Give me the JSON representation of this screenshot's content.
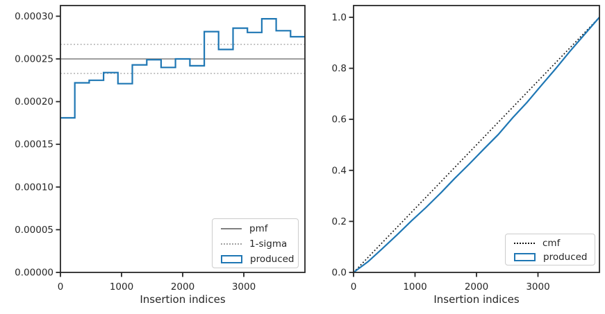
{
  "figure": {
    "background": "#ffffff",
    "text_color": "#262626",
    "spine_color": "#262626",
    "accent_blue": "#1f77b4",
    "pmf_gray": "#7f7f7f",
    "sigma_gray": "#a0a0a0",
    "cmf_black": "#111111"
  },
  "chart_data": [
    {
      "type": "bar",
      "subtype": "step-histogram",
      "title": "",
      "xlabel": "Insertion indices",
      "ylabel": "",
      "xlim": [
        0,
        4000
      ],
      "ylim": [
        0,
        0.0003125
      ],
      "grid": false,
      "xticks": {
        "values": [
          0,
          1000,
          2000,
          3000
        ],
        "labels": [
          "0",
          "1000",
          "2000",
          "3000"
        ]
      },
      "yticks": {
        "values": [
          0,
          5e-05,
          0.0001,
          0.00015,
          0.0002,
          0.00025,
          0.0003
        ],
        "labels": [
          "0.00000",
          "0.00005",
          "0.00010",
          "0.00015",
          "0.00020",
          "0.00025",
          "0.00030"
        ]
      },
      "series": [
        {
          "name": "pmf",
          "type": "hline",
          "y": 0.00025,
          "color": "#7f7f7f",
          "dash": "solid",
          "width": 1.5
        },
        {
          "name": "1-sigma upper",
          "type": "hline",
          "y": 0.000267,
          "color": "#a0a0a0",
          "dash": "dotted",
          "width": 1.4
        },
        {
          "name": "1-sigma lower",
          "type": "hline",
          "y": 0.000233,
          "color": "#a0a0a0",
          "dash": "dotted",
          "width": 1.4
        },
        {
          "name": "produced",
          "type": "step",
          "color": "#1f77b4",
          "dash": "solid",
          "width": 2.2,
          "edges": [
            0,
            235,
            471,
            706,
            941,
            1176,
            1412,
            1647,
            1882,
            2118,
            2353,
            2588,
            2824,
            3059,
            3294,
            3529,
            3765,
            4000
          ],
          "values": [
            0.000181,
            0.000222,
            0.000225,
            0.000234,
            0.000221,
            0.000243,
            0.000249,
            0.00024,
            0.00025,
            0.000242,
            0.000282,
            0.000261,
            0.000286,
            0.000281,
            0.000297,
            0.000283,
            0.000276
          ]
        }
      ],
      "legend": {
        "position": "lower right",
        "entries": [
          {
            "label": "pmf",
            "swatch": "line",
            "color": "#7f7f7f",
            "dash": "solid"
          },
          {
            "label": "1-sigma",
            "swatch": "line",
            "color": "#a0a0a0",
            "dash": "dotted"
          },
          {
            "label": "produced",
            "swatch": "rect",
            "color": "#1f77b4",
            "dash": "solid"
          }
        ]
      }
    },
    {
      "type": "line",
      "subtype": "cdf",
      "title": "",
      "xlabel": "Insertion indices",
      "ylabel": "",
      "xlim": [
        0,
        4000
      ],
      "ylim": [
        0,
        1.046
      ],
      "grid": false,
      "xticks": {
        "values": [
          0,
          1000,
          2000,
          3000
        ],
        "labels": [
          "0",
          "1000",
          "2000",
          "3000"
        ]
      },
      "yticks": {
        "values": [
          0,
          0.2,
          0.4,
          0.6,
          0.8,
          1.0
        ],
        "labels": [
          "0.0",
          "0.2",
          "0.4",
          "0.6",
          "0.8",
          "1.0"
        ]
      },
      "series": [
        {
          "name": "cmf",
          "type": "line",
          "color": "#111111",
          "dash": "dotted",
          "width": 1.7,
          "x": [
            0,
            4000
          ],
          "y": [
            0,
            1.0
          ]
        },
        {
          "name": "produced",
          "type": "line",
          "color": "#1f77b4",
          "dash": "solid",
          "width": 2.2,
          "x": [
            0,
            235,
            471,
            706,
            941,
            1176,
            1412,
            1647,
            1882,
            2118,
            2353,
            2588,
            2824,
            3059,
            3294,
            3529,
            3765,
            4000
          ],
          "y": [
            0,
            0.042,
            0.094,
            0.147,
            0.202,
            0.254,
            0.31,
            0.369,
            0.425,
            0.483,
            0.54,
            0.606,
            0.667,
            0.734,
            0.8,
            0.869,
            0.935,
            1.0
          ]
        }
      ],
      "legend": {
        "position": "lower right",
        "entries": [
          {
            "label": "cmf",
            "swatch": "line",
            "color": "#111111",
            "dash": "dotted"
          },
          {
            "label": "produced",
            "swatch": "rect",
            "color": "#1f77b4",
            "dash": "solid"
          }
        ]
      }
    }
  ]
}
